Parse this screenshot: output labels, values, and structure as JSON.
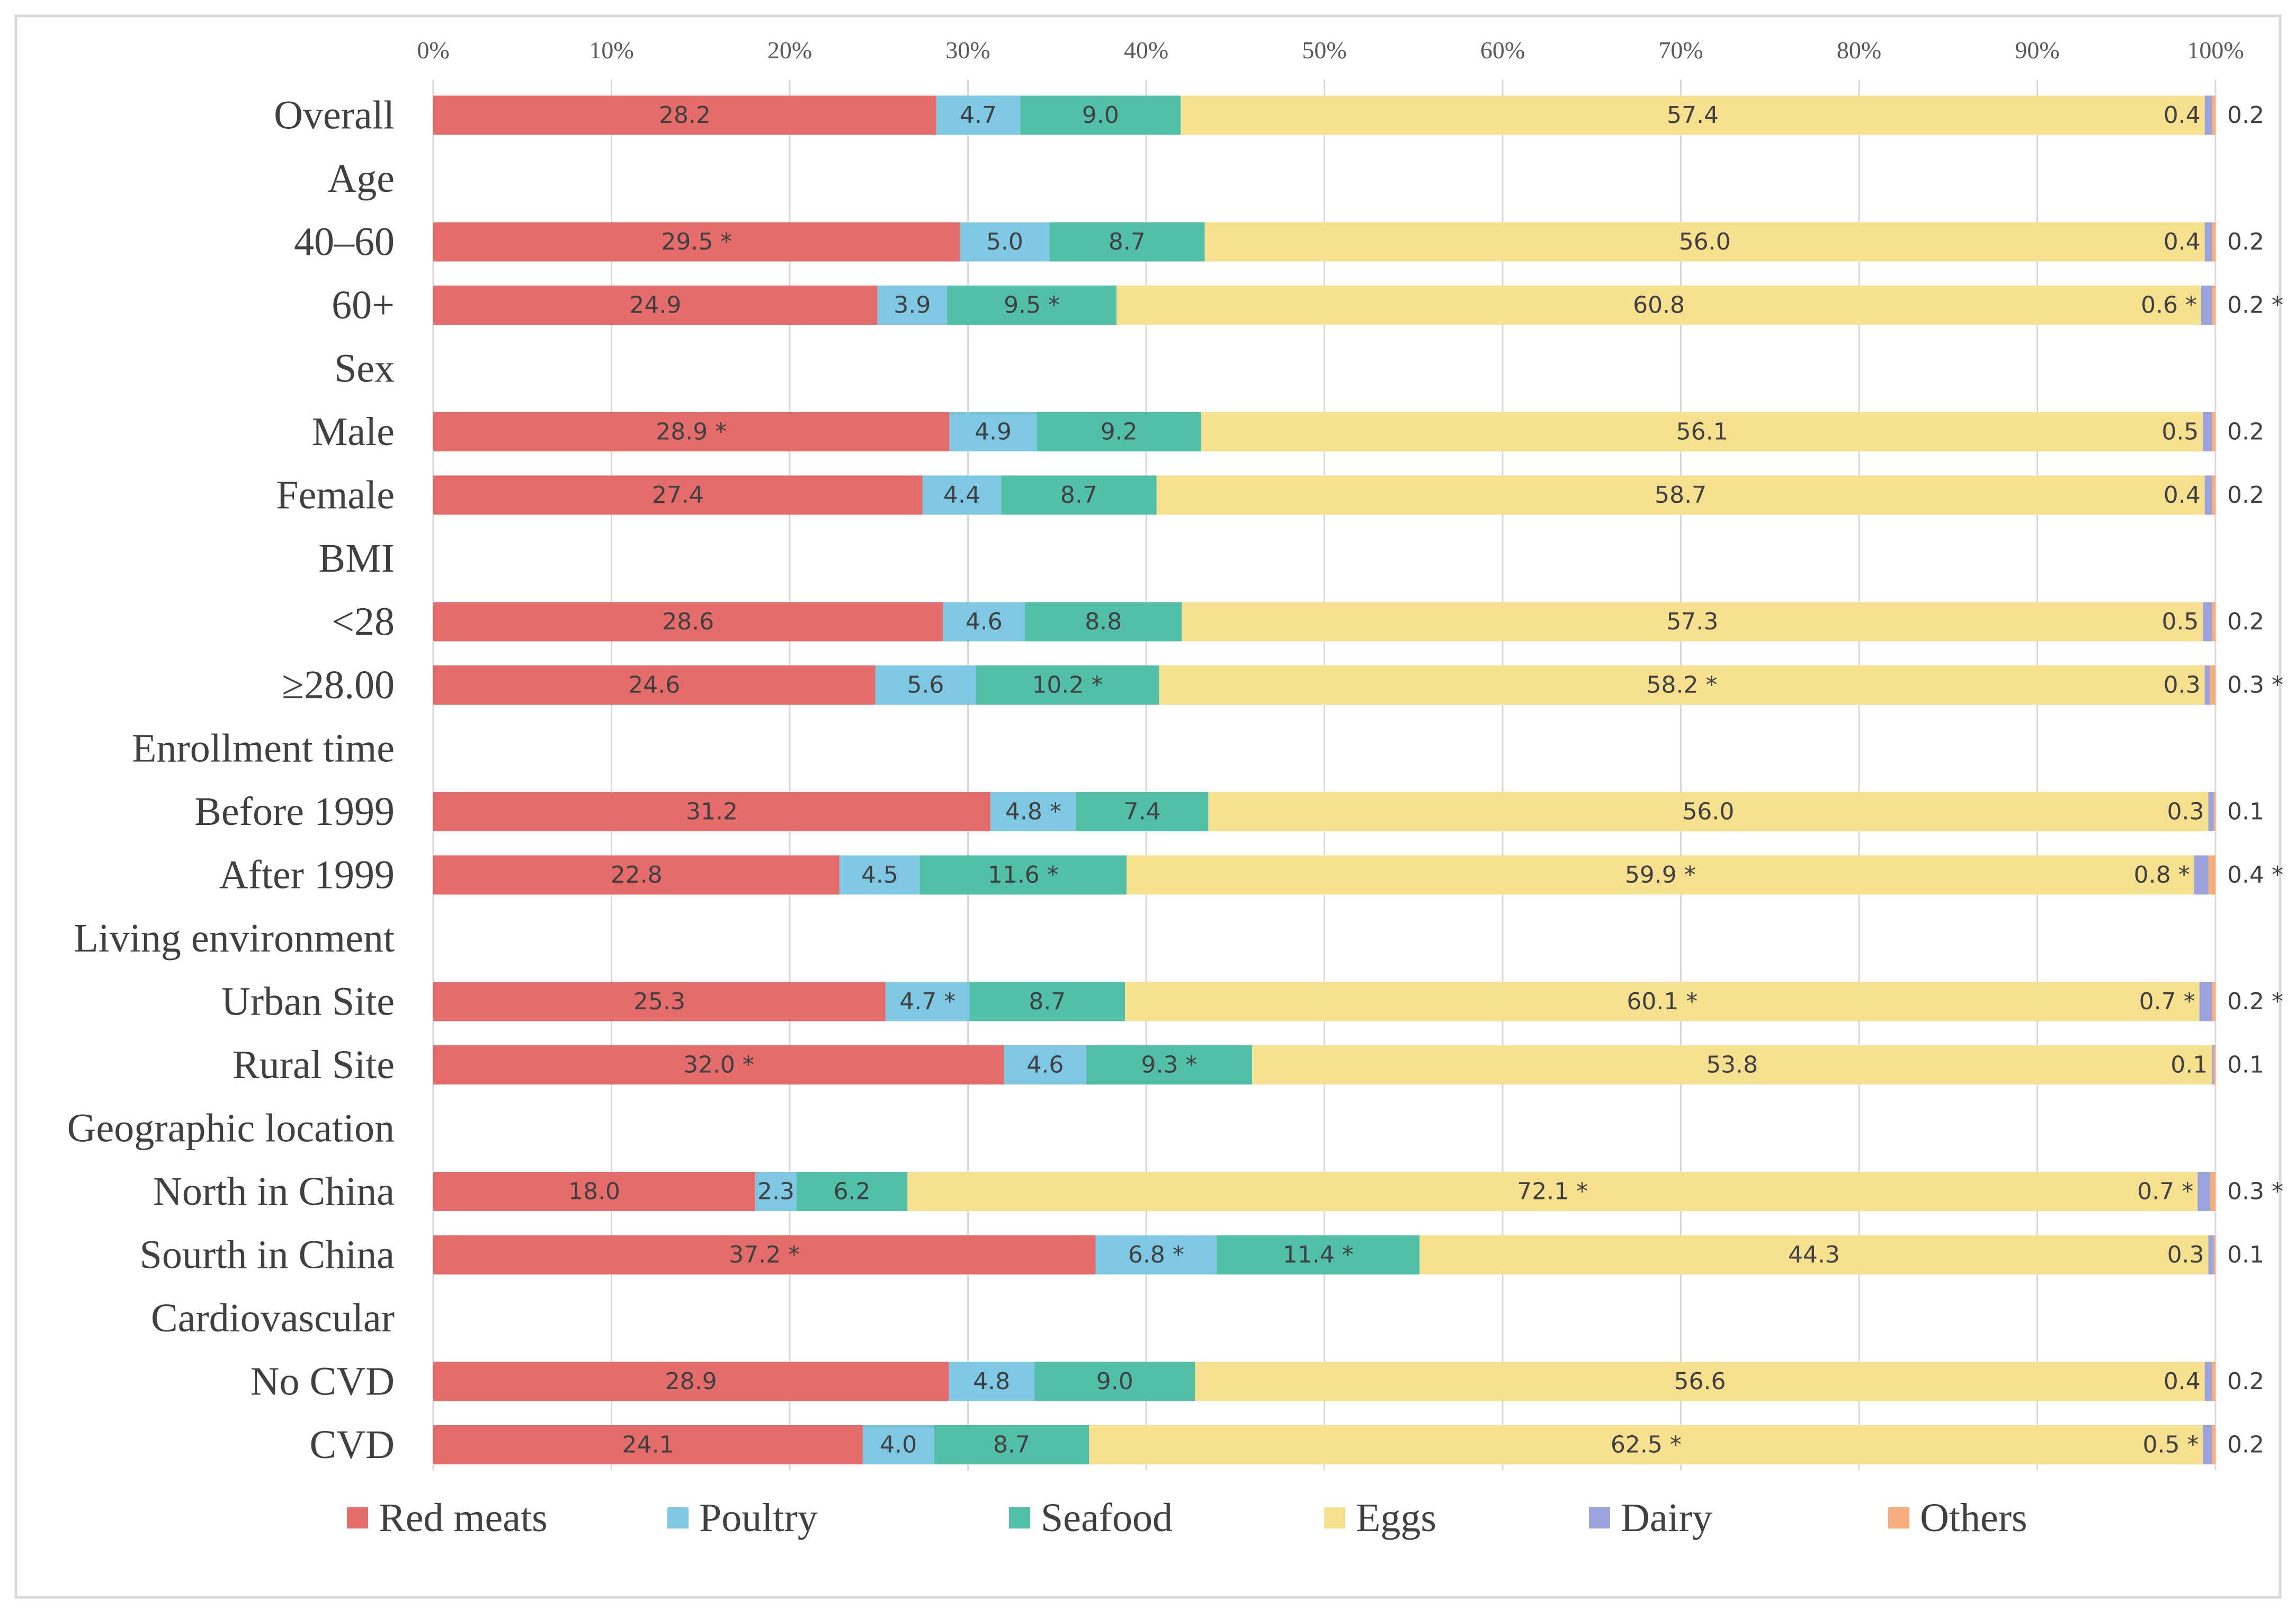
{
  "chart_data": {
    "type": "bar",
    "orientation": "horizontal",
    "stacked": true,
    "percent": true,
    "xlim": [
      0,
      100
    ],
    "xticks": [
      "0%",
      "10%",
      "20%",
      "30%",
      "40%",
      "50%",
      "60%",
      "70%",
      "80%",
      "90%",
      "100%"
    ],
    "grid": true,
    "legend_position": "bottom",
    "star": "*",
    "series": [
      {
        "name": "Red meats",
        "color": "#E46C6A"
      },
      {
        "name": "Poultry",
        "color": "#7EC8E3"
      },
      {
        "name": "Seafood",
        "color": "#52BFA9"
      },
      {
        "name": "Eggs",
        "color": "#F7E08F"
      },
      {
        "name": "Dairy",
        "color": "#9AA3DC"
      },
      {
        "name": "Others",
        "color": "#F7AC7C"
      }
    ],
    "rows": [
      {
        "label": "Overall",
        "values": [
          28.2,
          4.7,
          9.0,
          57.4,
          0.4,
          0.2
        ],
        "labels": [
          "28.2",
          "4.7",
          "9.0",
          "57.4",
          "0.4",
          "0.2"
        ],
        "stars": [
          false,
          false,
          false,
          false,
          false,
          false
        ]
      },
      {
        "label": "Age",
        "header": true
      },
      {
        "label": "40–60",
        "values": [
          29.5,
          5.0,
          8.7,
          56.0,
          0.4,
          0.2
        ],
        "labels": [
          "29.5",
          "5.0",
          "8.7",
          "56.0",
          "0.4",
          "0.2"
        ],
        "stars": [
          true,
          false,
          false,
          false,
          false,
          false
        ]
      },
      {
        "label": "60+",
        "values": [
          24.9,
          3.9,
          9.5,
          60.8,
          0.6,
          0.2
        ],
        "labels": [
          "24.9",
          "3.9",
          "9.5",
          "60.8",
          "0.6",
          "0.2"
        ],
        "stars": [
          false,
          false,
          true,
          false,
          true,
          true
        ]
      },
      {
        "label": "Sex",
        "header": true
      },
      {
        "label": "Male",
        "values": [
          28.9,
          4.9,
          9.2,
          56.1,
          0.5,
          0.2
        ],
        "labels": [
          "28.9",
          "4.9",
          "9.2",
          "56.1",
          "0.5",
          "0.2"
        ],
        "stars": [
          true,
          false,
          false,
          false,
          false,
          false
        ]
      },
      {
        "label": "Female",
        "values": [
          27.4,
          4.4,
          8.7,
          58.7,
          0.4,
          0.2
        ],
        "labels": [
          "27.4",
          "4.4",
          "8.7",
          "58.7",
          "0.4",
          "0.2"
        ],
        "stars": [
          false,
          false,
          false,
          false,
          false,
          false
        ]
      },
      {
        "label": "BMI",
        "header": true
      },
      {
        "label": "<28",
        "values": [
          28.6,
          4.6,
          8.8,
          57.3,
          0.5,
          0.2
        ],
        "labels": [
          "28.6",
          "4.6",
          "8.8",
          "57.3",
          "0.5",
          "0.2"
        ],
        "stars": [
          false,
          false,
          false,
          false,
          false,
          false
        ]
      },
      {
        "label": "≥28.00",
        "values": [
          24.6,
          5.6,
          10.2,
          58.2,
          0.3,
          0.3
        ],
        "labels": [
          "24.6",
          "5.6",
          "10.2",
          "58.2",
          "0.3",
          "0.3"
        ],
        "stars": [
          false,
          false,
          true,
          true,
          false,
          true
        ]
      },
      {
        "label": "Enrollment time",
        "header": true
      },
      {
        "label": "Before 1999",
        "values": [
          31.2,
          4.8,
          7.4,
          56.0,
          0.3,
          0.1
        ],
        "labels": [
          "31.2",
          "4.8",
          "7.4",
          "56.0",
          "0.3",
          "0.1"
        ],
        "stars": [
          false,
          true,
          false,
          false,
          false,
          false
        ]
      },
      {
        "label": "After 1999",
        "values": [
          22.8,
          4.5,
          11.6,
          59.9,
          0.8,
          0.4
        ],
        "labels": [
          "22.8",
          "4.5",
          "11.6",
          "59.9",
          "0.8",
          "0.4"
        ],
        "stars": [
          false,
          false,
          true,
          true,
          true,
          true
        ]
      },
      {
        "label": "Living environment",
        "header": true
      },
      {
        "label": "Urban Site",
        "values": [
          25.3,
          4.7,
          8.7,
          60.1,
          0.7,
          0.2
        ],
        "labels": [
          "25.3",
          "4.7",
          "8.7",
          "60.1",
          "0.7",
          "0.2"
        ],
        "stars": [
          false,
          true,
          false,
          true,
          true,
          true
        ]
      },
      {
        "label": "Rural Site",
        "values": [
          32.0,
          4.6,
          9.3,
          53.8,
          0.1,
          0.1
        ],
        "labels": [
          "32.0",
          "4.6",
          "9.3",
          "53.8",
          "0.1",
          "0.1"
        ],
        "stars": [
          true,
          false,
          true,
          false,
          false,
          false
        ]
      },
      {
        "label": "Geographic location",
        "header": true
      },
      {
        "label": "North in China",
        "values": [
          18.0,
          2.3,
          6.2,
          72.1,
          0.7,
          0.3
        ],
        "labels": [
          "18.0",
          "2.3",
          "6.2",
          "72.1",
          "0.7",
          "0.3"
        ],
        "stars": [
          false,
          false,
          false,
          true,
          true,
          true
        ]
      },
      {
        "label": "Sourth in China",
        "values": [
          37.2,
          6.8,
          11.4,
          44.3,
          0.3,
          0.1
        ],
        "labels": [
          "37.2",
          "6.8",
          "11.4",
          "44.3",
          "0.3",
          "0.1"
        ],
        "stars": [
          true,
          true,
          true,
          false,
          false,
          false
        ]
      },
      {
        "label": "Cardiovascular",
        "header": true
      },
      {
        "label": "No CVD",
        "values": [
          28.9,
          4.8,
          9.0,
          56.6,
          0.4,
          0.2
        ],
        "labels": [
          "28.9",
          "4.8",
          "9.0",
          "56.6",
          "0.4",
          "0.2"
        ],
        "stars": [
          false,
          false,
          false,
          false,
          false,
          false
        ]
      },
      {
        "label": "CVD",
        "values": [
          24.1,
          4.0,
          8.7,
          62.5,
          0.5,
          0.2
        ],
        "labels": [
          "24.1",
          "4.0",
          "8.7",
          "62.5",
          "0.5",
          "0.2"
        ],
        "stars": [
          false,
          false,
          false,
          true,
          true,
          false
        ]
      }
    ]
  }
}
